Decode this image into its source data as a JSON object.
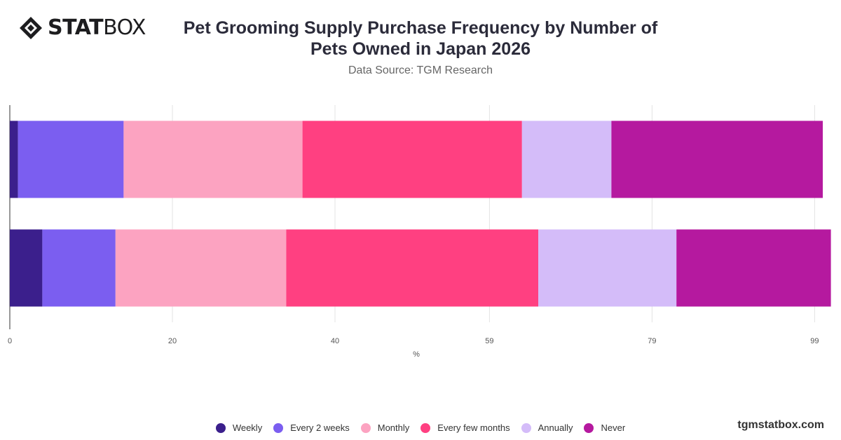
{
  "brand": {
    "logo_bold": "STAT",
    "logo_light": "BOX",
    "logo_icon": "diamond-logo-icon",
    "watermark": "tgmstatbox.com"
  },
  "chart_data": {
    "type": "bar",
    "orientation": "horizontal",
    "stacked": true,
    "title": "Pet Grooming Supply Purchase Frequency by Number of Pets Owned in Japan 2026",
    "subtitle": "Data Source: TGM Research",
    "xlabel": "%",
    "ylabel": "",
    "xlim": [
      0,
      100
    ],
    "x_ticks": [
      "0",
      "20",
      "40",
      "59",
      "79",
      "99"
    ],
    "grid": true,
    "legend_position": "bottom",
    "categories": [
      "",
      ""
    ],
    "series": [
      {
        "name": "Weekly",
        "color": "#3b1f8c",
        "values": [
          1,
          4
        ]
      },
      {
        "name": "Every 2 weeks",
        "color": "#7b5ef0",
        "values": [
          13,
          9
        ]
      },
      {
        "name": "Monthly",
        "color": "#fca3c1",
        "values": [
          22,
          21
        ]
      },
      {
        "name": "Every few months",
        "color": "#ff4081",
        "values": [
          27,
          31
        ]
      },
      {
        "name": "Annually",
        "color": "#d4bcf9",
        "values": [
          11,
          17
        ]
      },
      {
        "name": "Never",
        "color": "#b5199f",
        "values": [
          26,
          19
        ]
      }
    ]
  }
}
